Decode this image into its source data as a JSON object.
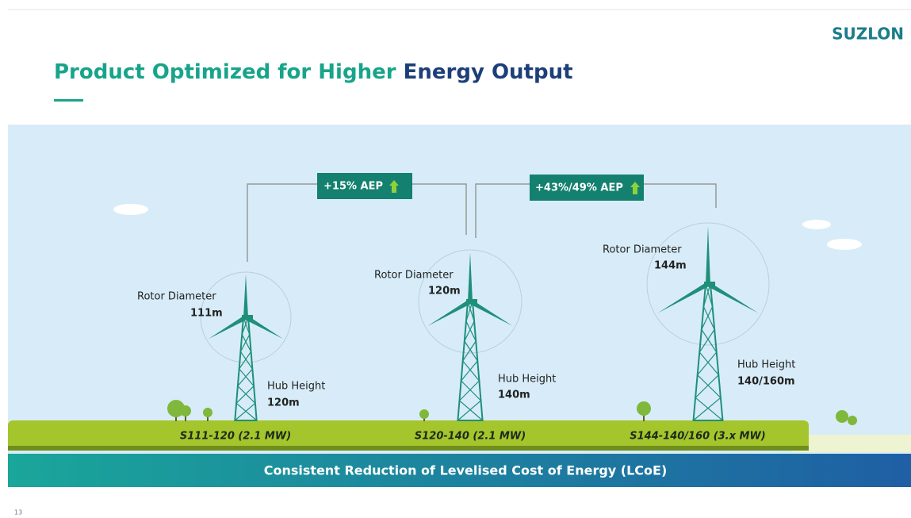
{
  "header": {
    "title_part1": "Product Optimized for Higher",
    "title_part2": "Energy Output",
    "logo": "SUZLON"
  },
  "callouts": [
    "+15% AEP",
    "+43%/49% AEP"
  ],
  "turbines": [
    {
      "rotor_label": "Rotor Diameter",
      "rotor_value": "111m",
      "hub_label": "Hub Height",
      "hub_value": "120m",
      "model": "S111-120 (2.1 MW)"
    },
    {
      "rotor_label": "Rotor Diameter",
      "rotor_value": "120m",
      "hub_label": "Hub Height",
      "hub_value": "140m",
      "model": "S120-140 (2.1 MW)"
    },
    {
      "rotor_label": "Rotor Diameter",
      "rotor_value": "144m",
      "hub_label": "Hub Height",
      "hub_value": "140/160m",
      "model": "S144-140/160 (3.x MW)"
    }
  ],
  "banner": "Consistent Reduction of Levelised Cost of Energy (LCoE)",
  "page_number": "13"
}
